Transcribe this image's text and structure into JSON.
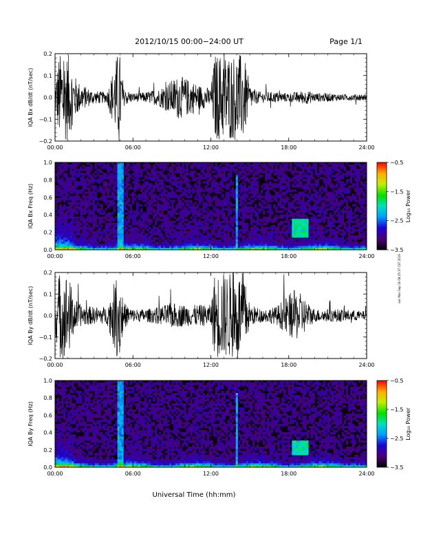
{
  "header": {
    "title": "2012/10/15   00:00−24:00  UT",
    "page": "Page 1/1"
  },
  "footer": {
    "xlabel": "Universal Time (hh:mm)"
  },
  "stamp": "swr Mon Sep 16 08:25:37 CST 2019",
  "chart_data": [
    {
      "type": "line",
      "station": "IQA",
      "component": "Bx",
      "ylabel": "IQA Bx dB/dt (nT/sec)",
      "x_ticks": [
        "00:00",
        "06:00",
        "12:00",
        "18:00",
        "24:00"
      ],
      "x_range_hours": [
        0,
        24
      ],
      "y_ticks": [
        "0.2",
        "0.1",
        "0.0",
        "−0.1",
        "−0.2"
      ],
      "ylim": [
        -0.2,
        0.2
      ],
      "envelope": {
        "x_hours": [
          0,
          0.3,
          0.5,
          1,
          1.5,
          2,
          3,
          4,
          4.8,
          5,
          5.3,
          6,
          7,
          8,
          8.5,
          9,
          9.5,
          10,
          10.5,
          11,
          12,
          12.3,
          12.5,
          13,
          13.5,
          14,
          14.5,
          15,
          15.5,
          16,
          17,
          18,
          18.5,
          19,
          19.5,
          20,
          21,
          22,
          23,
          24
        ],
        "amplitude": [
          0.06,
          0.2,
          0.2,
          0.2,
          0.1,
          0.06,
          0.03,
          0.025,
          0.2,
          0.2,
          0.04,
          0.02,
          0.025,
          0.04,
          0.06,
          0.08,
          0.1,
          0.09,
          0.08,
          0.06,
          0.04,
          0.2,
          0.2,
          0.2,
          0.2,
          0.2,
          0.2,
          0.06,
          0.03,
          0.025,
          0.025,
          0.02,
          0.025,
          0.03,
          0.03,
          0.02,
          0.02,
          0.015,
          0.015,
          0.015
        ]
      }
    },
    {
      "type": "heatmap",
      "station": "IQA",
      "component": "Bx",
      "ylabel": "IQA Bx Freq (Hz)",
      "x_ticks": [
        "00:00",
        "06:00",
        "12:00",
        "18:00",
        "24:00"
      ],
      "x_range_hours": [
        0,
        24
      ],
      "y_ticks": [
        "1.0",
        "0.8",
        "0.6",
        "0.4",
        "0.2",
        "0.0"
      ],
      "ylim": [
        0,
        1.0
      ],
      "colorbar": {
        "label": "Log₁₀ Power",
        "ticks": [
          "−0.5",
          "−1.5",
          "−2.5",
          "−3.5"
        ],
        "range": [
          -3.5,
          -0.5
        ]
      },
      "features": [
        {
          "description": "strong low-frequency power",
          "x_hours": [
            0,
            1.5
          ],
          "freq_hz": [
            0,
            0.5
          ]
        },
        {
          "description": "broadband burst",
          "x_hours": [
            4.8,
            5.2
          ],
          "freq_hz": [
            0,
            1.0
          ]
        },
        {
          "description": "narrow vertical line",
          "x_hours": [
            14.0,
            14.1
          ],
          "freq_hz": [
            0,
            0.85
          ]
        },
        {
          "description": "Pc1 band",
          "x_hours": [
            18.3,
            19.5
          ],
          "freq_hz": [
            0.15,
            0.35
          ]
        }
      ]
    },
    {
      "type": "line",
      "station": "IQA",
      "component": "By",
      "ylabel": "IQA By dB/dt (nT/sec)",
      "x_ticks": [
        "00:00",
        "06:00",
        "12:00",
        "18:00",
        "24:00"
      ],
      "x_range_hours": [
        0,
        24
      ],
      "y_ticks": [
        "0.2",
        "0.1",
        "0.0",
        "−0.1",
        "−0.2"
      ],
      "ylim": [
        -0.2,
        0.2
      ],
      "envelope": {
        "x_hours": [
          0,
          0.3,
          0.5,
          1,
          1.5,
          2,
          3,
          4,
          4.8,
          5,
          5.3,
          6,
          7,
          8,
          9,
          10,
          11,
          12,
          12.3,
          12.5,
          13,
          13.5,
          14,
          14.5,
          15,
          16,
          17,
          18,
          18.5,
          19,
          19.5,
          20,
          21,
          22,
          23,
          24
        ],
        "amplitude": [
          0.08,
          0.2,
          0.2,
          0.2,
          0.08,
          0.05,
          0.04,
          0.04,
          0.2,
          0.2,
          0.06,
          0.03,
          0.03,
          0.04,
          0.06,
          0.05,
          0.05,
          0.05,
          0.2,
          0.2,
          0.2,
          0.2,
          0.2,
          0.2,
          0.05,
          0.03,
          0.04,
          0.1,
          0.12,
          0.1,
          0.06,
          0.03,
          0.03,
          0.03,
          0.025,
          0.02
        ]
      }
    },
    {
      "type": "heatmap",
      "station": "IQA",
      "component": "By",
      "ylabel": "IQA By Freq (Hz)",
      "x_ticks": [
        "00:00",
        "06:00",
        "12:00",
        "18:00",
        "24:00"
      ],
      "x_range_hours": [
        0,
        24
      ],
      "y_ticks": [
        "1.0",
        "0.8",
        "0.6",
        "0.4",
        "0.2",
        "0.0"
      ],
      "ylim": [
        0,
        1.0
      ],
      "colorbar": {
        "label": "Log₁₀ Power",
        "ticks": [
          "−0.5",
          "−1.5",
          "−2.5",
          "−3.5"
        ],
        "range": [
          -3.5,
          -0.5
        ]
      },
      "features": [
        {
          "description": "strong low-frequency power",
          "x_hours": [
            0,
            1.5
          ],
          "freq_hz": [
            0,
            0.5
          ]
        },
        {
          "description": "broadband burst",
          "x_hours": [
            4.8,
            5.2
          ],
          "freq_hz": [
            0,
            1.0
          ]
        },
        {
          "description": "narrow vertical line",
          "x_hours": [
            14.0,
            14.1
          ],
          "freq_hz": [
            0,
            0.85
          ]
        },
        {
          "description": "Pc1 band",
          "x_hours": [
            18.3,
            19.5
          ],
          "freq_hz": [
            0.15,
            0.3
          ]
        }
      ]
    }
  ]
}
